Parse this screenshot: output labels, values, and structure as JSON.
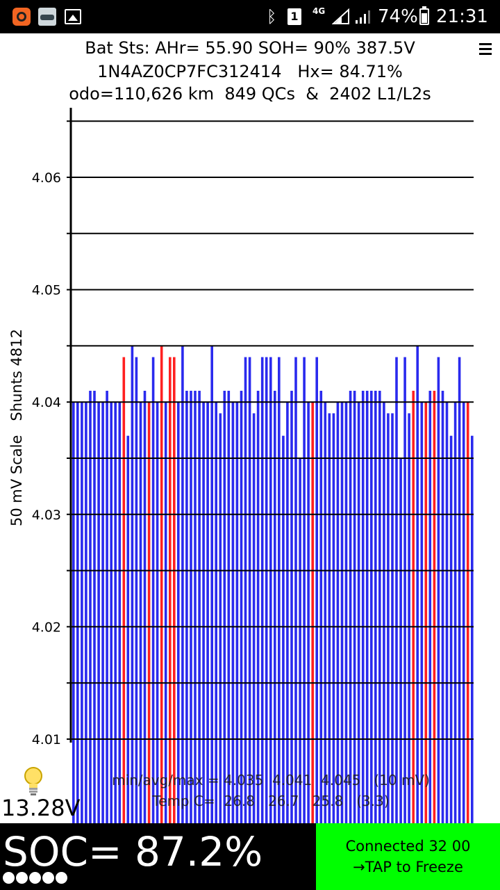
{
  "status_bar": {
    "battery_percent": "74%",
    "time": "21:31",
    "sim_label": "1",
    "network_label": "4G",
    "icons": [
      "app-notification-icon",
      "car-app-icon",
      "gallery-icon",
      "bluetooth-icon",
      "sim-icon",
      "signal-icon",
      "battery-icon"
    ]
  },
  "header": {
    "line1": "Bat Sts: AHr= 55.90 SOH= 90% 387.5V",
    "line2": "1N4AZ0CP7FC312414   Hx= 84.71%",
    "line3": "odo=110,626 km  849 QCs  &  2402 L1/L2s",
    "menu_icon": "hamburger-menu-icon"
  },
  "chart_data": {
    "type": "bar",
    "ylabel": "50 mV Scale   Shunts 4812",
    "ylim": [
      4.01,
      4.06
    ],
    "yticks": [
      "4.01",
      "4.02",
      "4.03",
      "4.04",
      "4.05",
      "4.06"
    ],
    "grid": true,
    "series_colors": {
      "normal": "#2a2aee",
      "shunted": "#ff2020"
    },
    "cell_count": 96,
    "values": [
      4.04,
      4.04,
      4.04,
      4.04,
      4.041,
      4.041,
      4.04,
      4.04,
      4.041,
      4.04,
      4.04,
      4.04,
      4.044,
      4.037,
      4.045,
      4.044,
      4.04,
      4.041,
      4.04,
      4.044,
      4.04,
      4.045,
      4.04,
      4.044,
      4.044,
      4.04,
      4.045,
      4.041,
      4.041,
      4.041,
      4.041,
      4.04,
      4.04,
      4.045,
      4.04,
      4.039,
      4.041,
      4.041,
      4.04,
      4.04,
      4.041,
      4.044,
      4.044,
      4.039,
      4.041,
      4.044,
      4.044,
      4.044,
      4.041,
      4.044,
      4.037,
      4.04,
      4.041,
      4.044,
      4.035,
      4.044,
      4.04,
      4.04,
      4.044,
      4.041,
      4.04,
      4.039,
      4.039,
      4.04,
      4.04,
      4.04,
      4.041,
      4.041,
      4.04,
      4.041,
      4.041,
      4.041,
      4.041,
      4.041,
      4.04,
      4.039,
      4.039,
      4.044,
      4.035,
      4.044,
      4.039,
      4.041,
      4.045,
      4.04,
      4.04,
      4.041,
      4.041,
      4.044,
      4.041,
      4.04,
      4.037,
      4.04,
      4.044,
      4.04,
      4.04,
      4.037
    ],
    "shunted_cells": [
      12,
      18,
      21,
      23,
      24,
      57,
      81,
      84,
      86,
      94
    ]
  },
  "stats": {
    "line1": "min/avg/max = 4.035  4.041  4.045   (10 mV)",
    "line2": "Temp C=  26.8   26.7   25.8   (3.3)"
  },
  "aux": {
    "voltage": "13.28V",
    "bulb_icon": "lightbulb-icon"
  },
  "soc": {
    "label": "SOC= 87.2%",
    "dot_count": 5
  },
  "connect_button": {
    "line1": "Connected 32 00",
    "line2": "→TAP to Freeze"
  }
}
